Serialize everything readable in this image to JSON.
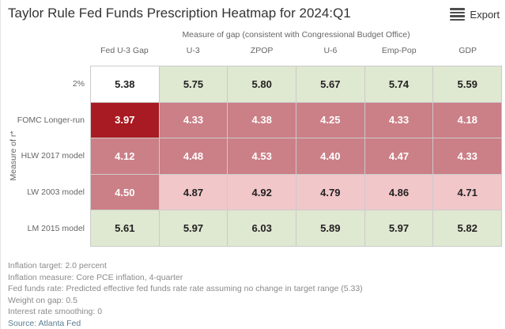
{
  "header": {
    "title": "Taylor Rule Fed Funds Prescription Heatmap for 2024:Q1",
    "export_label": "Export",
    "menu_icon": "hamburger-menu-icon"
  },
  "chart_data": {
    "type": "heatmap",
    "title": "Taylor Rule Fed Funds Prescription Heatmap for 2024:Q1",
    "column_group_label": "Measure of gap (consistent with Congressional Budget Office)",
    "columns": [
      "Fed U-3 Gap",
      "U-3",
      "ZPOP",
      "U-6",
      "Emp-Pop",
      "GDP"
    ],
    "row_axis_label": "Measure of r*",
    "rows": [
      {
        "label": "2%",
        "values": [
          5.38,
          5.75,
          5.8,
          5.67,
          5.74,
          5.59
        ]
      },
      {
        "label": "FOMC Longer-run",
        "values": [
          3.97,
          4.33,
          4.38,
          4.25,
          4.33,
          4.18
        ]
      },
      {
        "label": "HLW 2017 model",
        "values": [
          4.12,
          4.48,
          4.53,
          4.4,
          4.47,
          4.33
        ]
      },
      {
        "label": "LW 2003 model",
        "values": [
          4.5,
          4.87,
          4.92,
          4.79,
          4.86,
          4.71
        ]
      },
      {
        "label": "LM 2015 model",
        "values": [
          5.61,
          5.97,
          6.03,
          5.89,
          5.97,
          5.82
        ]
      }
    ],
    "value_format_decimals": 2,
    "color_scale": {
      "note": "diverging scale centered near current fed funds rate 5.33",
      "classes": [
        {
          "max": 4.05,
          "bg": "#a91b22",
          "fg": "#ffffff"
        },
        {
          "max": 4.6,
          "bg": "#cb7f86",
          "fg": "#ffffff"
        },
        {
          "max": 5.1,
          "bg": "#f2c7ca",
          "fg": "#222222"
        },
        {
          "max": 5.5,
          "bg": "#ffffff",
          "fg": "#222222"
        },
        {
          "max": 99.0,
          "bg": "#dfe8d0",
          "fg": "#222222"
        }
      ]
    }
  },
  "footnotes": {
    "lines": [
      "Inflation target: 2.0 percent",
      "Inflation measure: Core PCE inflation, 4-quarter",
      "Fed funds rate: Predicted effective fed funds rate rate assuming no change in target range (5.33)",
      "Weight on gap: 0.5",
      "Interest rate smoothing: 0"
    ],
    "source": "Source: Atlanta Fed"
  },
  "colors": {
    "title_text": "#333333",
    "axis_label_text": "#666666",
    "footnote_text": "#8a8a8a",
    "source_link": "#5a7e91",
    "grid_border": "#cbcbcb",
    "menu_icon": "#4d4d4d"
  }
}
